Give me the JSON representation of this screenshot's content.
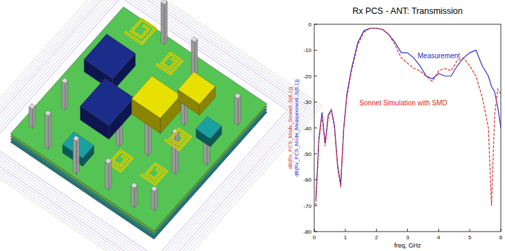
{
  "chart_data": {
    "type": "line",
    "title": "Rx PCS - ANT: Transmission",
    "xlabel": "freq, GHz",
    "ylabel": [
      "dB(Rx_PCS_Mode_Sonnet..S(6,1))",
      "dB(Rx_PCS_Mode_Measurement..S(6,1))"
    ],
    "x": [
      0.05,
      0.15,
      0.25,
      0.35,
      0.45,
      0.55,
      0.65,
      0.75,
      0.85,
      0.95,
      1.05,
      1.2,
      1.4,
      1.6,
      1.8,
      2.0,
      2.2,
      2.4,
      2.6,
      2.8,
      3.0,
      3.2,
      3.4,
      3.6,
      3.8,
      4.0,
      4.2,
      4.4,
      4.6,
      4.8,
      5.0,
      5.2,
      5.4,
      5.6,
      5.7,
      5.8,
      5.9,
      6.0
    ],
    "series": [
      {
        "name": "Measurement",
        "color": "#2a2ad0",
        "values": [
          -68,
          -44,
          -34,
          -46,
          -35,
          -33,
          -39,
          -54,
          -62,
          -40,
          -27,
          -17,
          -7,
          -2.5,
          -1.5,
          -1.5,
          -2,
          -4,
          -7,
          -11,
          -11,
          -13,
          -16,
          -20,
          -21,
          -19,
          -20,
          -20,
          -16,
          -13,
          -11,
          -10,
          -16,
          -20,
          -24,
          -26,
          -32,
          -40
        ]
      },
      {
        "name": "Sonnet Simulation with SMD",
        "color": "#e02828",
        "values": [
          -70,
          -45,
          -35,
          -47,
          -36,
          -33,
          -40,
          -55,
          -63,
          -40,
          -28,
          -18,
          -8,
          -3,
          -1.5,
          -1.5,
          -2,
          -4,
          -8,
          -13,
          -15,
          -17,
          -18,
          -20,
          -22,
          -18,
          -17,
          -18,
          -14,
          -13,
          -16,
          -20,
          -28,
          -40,
          -70,
          -35,
          -25,
          -27
        ]
      }
    ],
    "xlim": [
      0,
      6
    ],
    "xticks": [
      0,
      1,
      2,
      3,
      4,
      5,
      6
    ],
    "ylim": [
      -80,
      0
    ],
    "yticks": [
      -80,
      -70,
      -60,
      -50,
      -40,
      -30,
      -20,
      -10,
      0
    ],
    "grid": false
  }
}
